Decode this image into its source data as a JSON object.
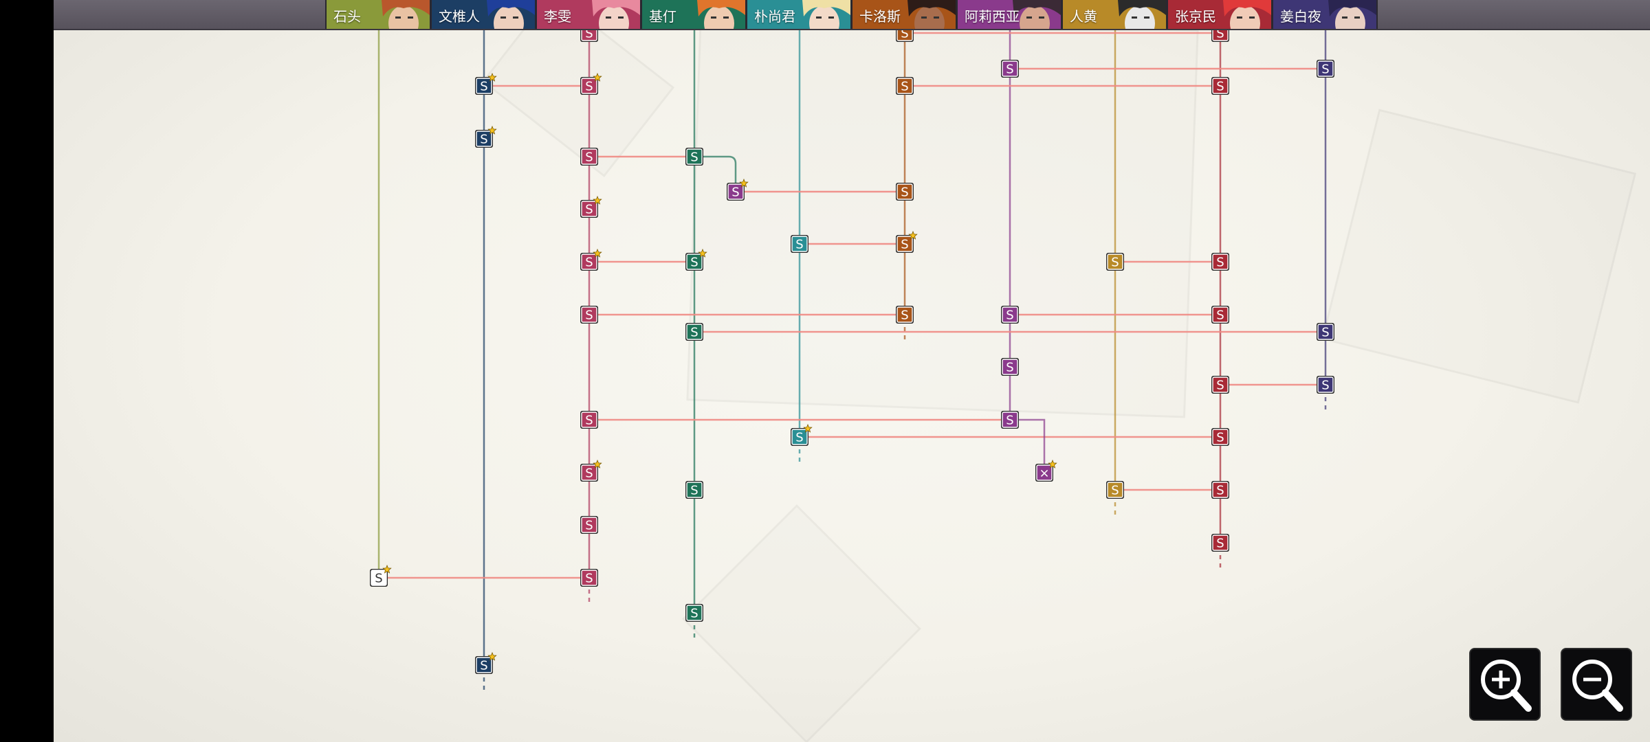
{
  "characters": [
    {
      "name": "石头",
      "color": "#8a9a3a",
      "portrait_hair": "#b9572c",
      "portrait_skin": "#e9c2a3"
    },
    {
      "name": "文椎人",
      "color": "#1c3e64",
      "portrait_hair": "#1f3f9a",
      "portrait_skin": "#eecfbd"
    },
    {
      "name": "李雯",
      "color": "#b03a5e",
      "portrait_hair": "#e8899e",
      "portrait_skin": "#f3d3c8"
    },
    {
      "name": "基仃",
      "color": "#1e7358",
      "portrait_hair": "#e0752c",
      "portrait_skin": "#efcbb0"
    },
    {
      "name": "朴尚君",
      "color": "#2a8f95",
      "portrait_hair": "#efe0a5",
      "portrait_skin": "#f3dac8"
    },
    {
      "name": "卡洛斯",
      "color": "#a85418",
      "portrait_hair": "#2d1c18",
      "portrait_skin": "#a86d4d"
    },
    {
      "name": "阿莉西亚",
      "color": "#8a3a8c",
      "portrait_hair": "#3b2a36",
      "portrait_skin": "#d6a58e"
    },
    {
      "name": "人黄",
      "color": "#b88a28",
      "portrait_hair": "#2b2b2b",
      "portrait_skin": "#e8e8e8"
    },
    {
      "name": "张京民",
      "color": "#a82a36",
      "portrait_hair": "#e03a3a",
      "portrait_skin": "#f0cbb7"
    },
    {
      "name": "姜白夜",
      "color": "#3e3675",
      "portrait_hair": "#2a2550",
      "portrait_skin": "#e8cfc3"
    }
  ],
  "node_label": "S",
  "locked_label": "×",
  "connector_color": "#f08a84",
  "zoom_in": {
    "icon": "magnifier-plus"
  },
  "zoom_out": {
    "icon": "magnifier-minus"
  }
}
